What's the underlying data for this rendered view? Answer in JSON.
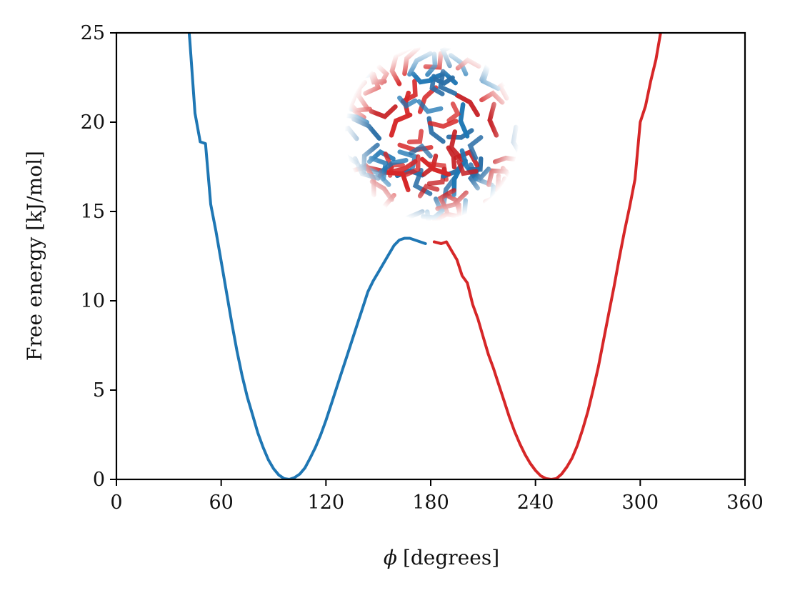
{
  "chart_data": {
    "type": "line",
    "xlabel_symbol": "ϕ",
    "xlabel": "[degrees]",
    "ylabel": "Free energy [kJ/mol]",
    "xlim": [
      0,
      360
    ],
    "ylim": [
      0,
      25
    ],
    "xticks": [
      0,
      60,
      120,
      180,
      240,
      300,
      360
    ],
    "yticks": [
      0,
      5,
      10,
      15,
      20,
      25
    ],
    "grid": false,
    "legend": "none",
    "series": [
      {
        "color": "#1f77b4",
        "x": [
          41.5,
          42,
          45,
          48,
          51,
          54,
          57,
          60,
          63,
          66,
          69,
          72,
          75,
          78,
          81,
          84,
          87,
          90,
          93,
          96,
          99,
          102,
          105,
          108,
          111,
          114,
          117,
          120,
          123,
          126,
          129,
          132,
          135,
          138,
          141,
          144,
          147,
          150,
          153,
          156,
          159,
          162,
          165,
          168,
          171,
          174,
          177
        ],
        "y": [
          25.2,
          24.6,
          20.5,
          18.9,
          18.8,
          15.4,
          13.9,
          12.2,
          10.5,
          8.8,
          7.2,
          5.8,
          4.6,
          3.6,
          2.6,
          1.8,
          1.1,
          0.6,
          0.25,
          0.05,
          0.0,
          0.1,
          0.3,
          0.65,
          1.2,
          1.8,
          2.5,
          3.3,
          4.2,
          5.1,
          6.0,
          6.9,
          7.8,
          8.7,
          9.6,
          10.5,
          11.1,
          11.6,
          12.1,
          12.6,
          13.1,
          13.4,
          13.5,
          13.5,
          13.4,
          13.3,
          13.2
        ]
      },
      {
        "color": "#d62728",
        "x": [
          182,
          186,
          189,
          192,
          195,
          198,
          201,
          204,
          207,
          210,
          213,
          216,
          219,
          222,
          225,
          228,
          231,
          234,
          237,
          240,
          243,
          246,
          249,
          252,
          255,
          258,
          261,
          264,
          267,
          270,
          273,
          276,
          279,
          282,
          285,
          288,
          291,
          294,
          297,
          300,
          303,
          306,
          309,
          312,
          315,
          318,
          321,
          324
        ],
        "y": [
          13.3,
          13.2,
          13.3,
          12.8,
          12.3,
          11.4,
          11.0,
          9.8,
          9.0,
          8.0,
          7.0,
          6.2,
          5.3,
          4.4,
          3.5,
          2.7,
          2.0,
          1.4,
          0.9,
          0.5,
          0.2,
          0.05,
          0.0,
          0.05,
          0.3,
          0.7,
          1.2,
          1.9,
          2.8,
          3.8,
          5.0,
          6.3,
          7.8,
          9.3,
          10.8,
          12.4,
          13.9,
          15.3,
          16.8,
          20.0,
          20.9,
          22.3,
          23.5,
          25.2,
          25.2,
          25.2,
          25.2,
          25.2
        ]
      }
    ]
  }
}
